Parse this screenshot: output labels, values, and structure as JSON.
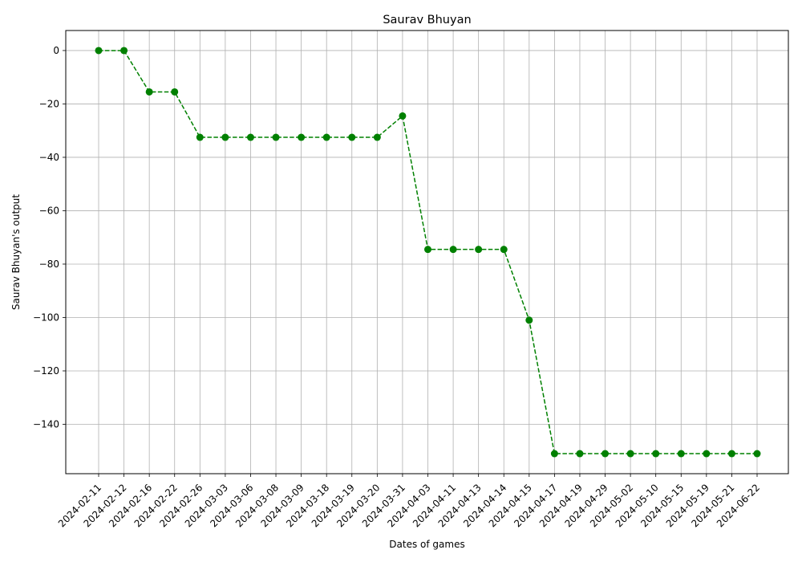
{
  "chart_data": {
    "type": "line",
    "title": "Saurav Bhuyan",
    "xlabel": "Dates of games",
    "ylabel": "Saurav Bhuyan's output",
    "x": [
      "2024-02-11",
      "2024-02-12",
      "2024-02-16",
      "2024-02-22",
      "2024-02-26",
      "2024-03-03",
      "2024-03-06",
      "2024-03-08",
      "2024-03-09",
      "2024-03-18",
      "2024-03-19",
      "2024-03-20",
      "2024-03-31",
      "2024-04-03",
      "2024-04-11",
      "2024-04-13",
      "2024-04-14",
      "2024-04-15",
      "2024-04-17",
      "2024-04-19",
      "2024-04-29",
      "2024-05-02",
      "2024-05-10",
      "2024-05-15",
      "2024-05-19",
      "2024-05-21",
      "2024-06-22"
    ],
    "series": [
      {
        "values": [
          0,
          0,
          -15.5,
          -15.5,
          -32.5,
          -32.5,
          -32.5,
          -32.5,
          -32.5,
          -32.5,
          -32.5,
          -32.5,
          -24.5,
          -74.5,
          -74.5,
          -74.5,
          -74.5,
          -101,
          -151,
          -151,
          -151,
          -151,
          -151,
          -151,
          -151,
          -151,
          -151
        ],
        "color": "#008000",
        "line_style": "dashed",
        "marker": "circle"
      }
    ],
    "y_ticks": [
      0,
      -20,
      -40,
      -60,
      -80,
      -100,
      -120,
      -140
    ],
    "y_tick_labels": [
      "0",
      "−20",
      "−40",
      "−60",
      "−80",
      "−100",
      "−120",
      "−140"
    ],
    "ylim": [
      -158.5,
      7.5
    ],
    "grid": true,
    "legend": false,
    "colors": {
      "line": "#008000",
      "grid": "#b0b0b0",
      "axes": "#000000"
    }
  }
}
